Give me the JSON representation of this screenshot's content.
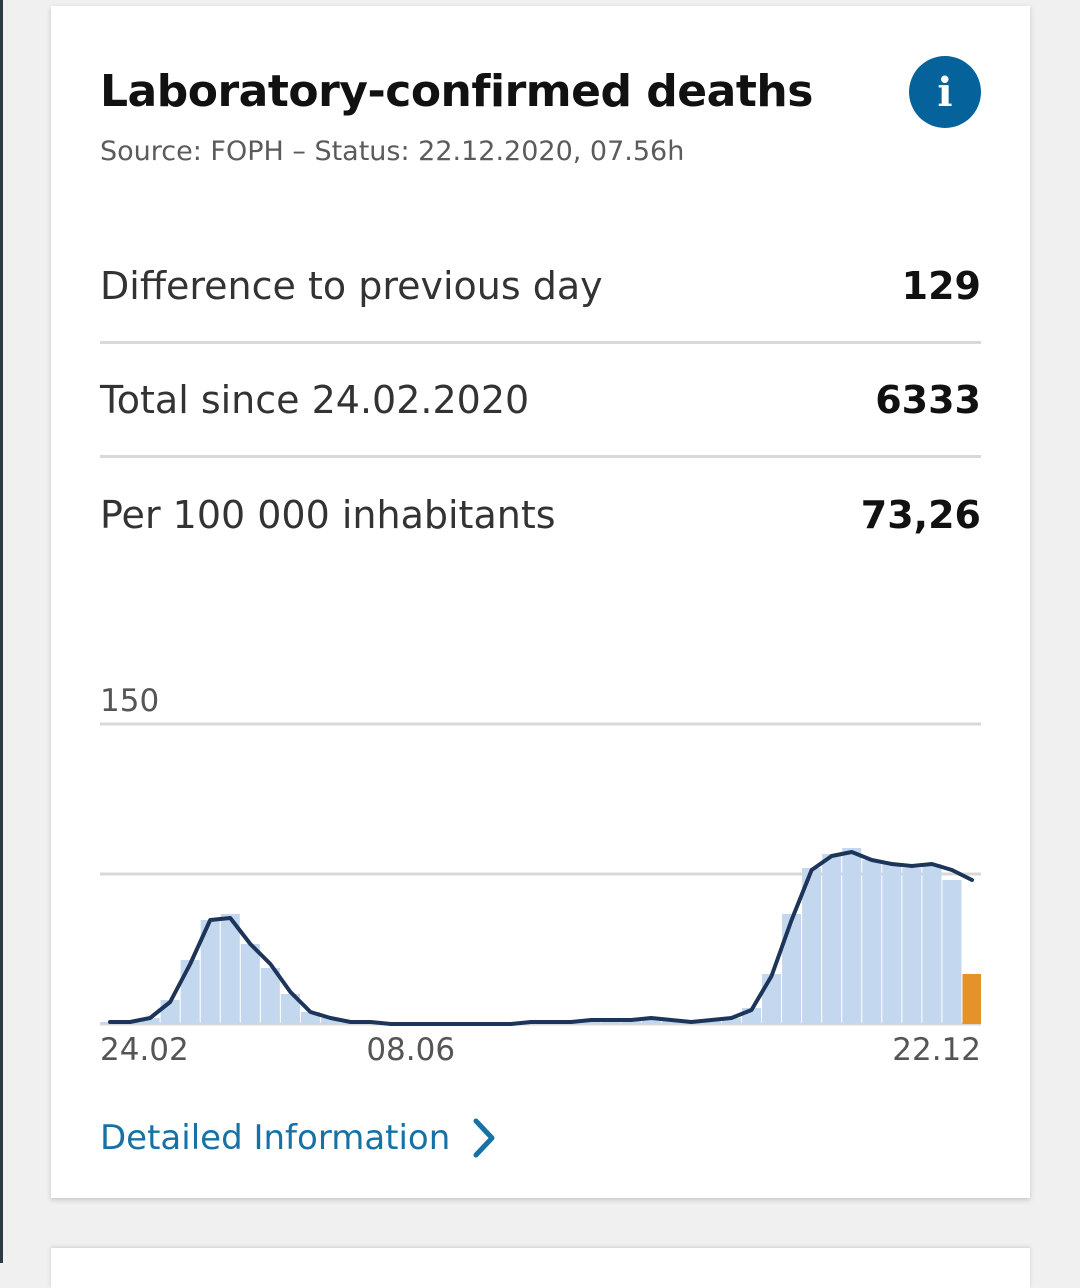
{
  "card": {
    "title": "Laboratory-confirmed deaths",
    "subtitle": "Source: FOPH – Status: 22.12.2020, 07.56h",
    "info_icon": "info-icon",
    "stats": [
      {
        "label": "Difference to previous day",
        "value": "129"
      },
      {
        "label": "Total since 24.02.2020",
        "value": "6333"
      },
      {
        "label": "Per 100 000 inhabitants",
        "value": "73,26"
      }
    ],
    "link_label": "Detailed Information",
    "link_icon": "chevron-right-icon"
  },
  "colors": {
    "bar": "#c3d8ee",
    "bar_spike": "#a9c6e6",
    "line": "#1d355a",
    "incomplete": "#e6922a",
    "grid": "#d9d9d9",
    "accent": "#05629a",
    "link": "#1672a6"
  },
  "chart_data": {
    "type": "bar",
    "y_tick_labels": [
      "150"
    ],
    "x_tick_labels": [
      "24.02",
      "08.06",
      "22.12"
    ],
    "ylim": [
      0,
      150
    ],
    "gridlines": [
      0,
      75,
      150
    ],
    "series": [
      {
        "bars": "daily deaths",
        "x": [
          "24.02",
          "01.03",
          "08.03",
          "15.03",
          "22.03",
          "29.03",
          "05.04",
          "12.04",
          "19.04",
          "26.04",
          "03.05",
          "10.05",
          "17.05",
          "24.05",
          "31.05",
          "07.06",
          "14.06",
          "21.06",
          "28.06",
          "05.07",
          "12.07",
          "19.07",
          "26.07",
          "02.08",
          "09.08",
          "16.08",
          "23.08",
          "30.08",
          "06.09",
          "13.09",
          "20.09",
          "27.09",
          "04.10",
          "11.10",
          "18.10",
          "25.10",
          "01.11",
          "08.11",
          "15.11",
          "22.11",
          "29.11",
          "06.12",
          "13.12",
          "20.12"
        ],
        "values": [
          1,
          1,
          3,
          12,
          32,
          52,
          55,
          40,
          28,
          15,
          6,
          3,
          1,
          1,
          0,
          0,
          0,
          0,
          0,
          0,
          0,
          0,
          0,
          0,
          1,
          1,
          2,
          3,
          2,
          1,
          2,
          3,
          8,
          25,
          55,
          78,
          85,
          88,
          82,
          80,
          78,
          80,
          72,
          25
        ],
        "line_7day_avg": [
          1,
          1,
          3,
          11,
          30,
          52,
          53,
          40,
          30,
          16,
          6,
          3,
          1,
          1,
          0,
          0,
          0,
          0,
          0,
          0,
          0,
          1,
          1,
          1,
          2,
          2,
          2,
          3,
          2,
          1,
          2,
          3,
          7,
          24,
          52,
          77,
          84,
          86,
          82,
          80,
          79,
          80,
          77,
          72
        ]
      }
    ],
    "incomplete_data_marker": "last days (orange)",
    "grid": true
  }
}
